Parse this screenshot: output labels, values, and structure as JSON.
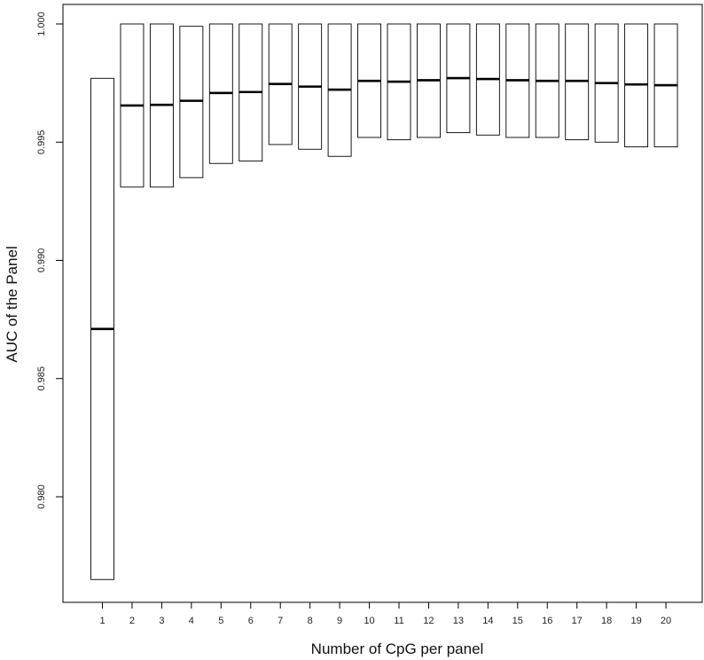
{
  "chart_data": {
    "type": "box",
    "xlabel": "Number of CpG per panel",
    "ylabel": "AUC of the Panel",
    "ylim": [
      0.9755,
      1.0005
    ],
    "y_ticks": [
      0.98,
      0.985,
      0.99,
      0.995,
      1.0
    ],
    "y_tick_labels": [
      "0.980",
      "0.985",
      "0.990",
      "0.995",
      "1.000"
    ],
    "categories": [
      "1",
      "2",
      "3",
      "4",
      "5",
      "6",
      "7",
      "8",
      "9",
      "10",
      "11",
      "12",
      "13",
      "14",
      "15",
      "16",
      "17",
      "18",
      "19",
      "20"
    ],
    "boxes": [
      {
        "low": 0.9765,
        "median": 0.9871,
        "high": 0.9977
      },
      {
        "low": 0.9931,
        "median": 0.99655,
        "high": 1.0
      },
      {
        "low": 0.9931,
        "median": 0.99658,
        "high": 1.0
      },
      {
        "low": 0.9935,
        "median": 0.99675,
        "high": 0.9999
      },
      {
        "low": 0.9941,
        "median": 0.99708,
        "high": 1.0
      },
      {
        "low": 0.9942,
        "median": 0.99712,
        "high": 1.0
      },
      {
        "low": 0.9949,
        "median": 0.99746,
        "high": 1.0
      },
      {
        "low": 0.9947,
        "median": 0.99735,
        "high": 1.0
      },
      {
        "low": 0.9944,
        "median": 0.99722,
        "high": 1.0
      },
      {
        "low": 0.9952,
        "median": 0.99759,
        "high": 1.0
      },
      {
        "low": 0.9951,
        "median": 0.99756,
        "high": 1.0
      },
      {
        "low": 0.9952,
        "median": 0.99762,
        "high": 1.0
      },
      {
        "low": 0.9954,
        "median": 0.99771,
        "high": 1.0
      },
      {
        "low": 0.9953,
        "median": 0.99767,
        "high": 1.0
      },
      {
        "low": 0.9952,
        "median": 0.99762,
        "high": 1.0
      },
      {
        "low": 0.9952,
        "median": 0.99759,
        "high": 1.0
      },
      {
        "low": 0.9951,
        "median": 0.99759,
        "high": 1.0
      },
      {
        "low": 0.995,
        "median": 0.9975,
        "high": 1.0
      },
      {
        "low": 0.9948,
        "median": 0.99744,
        "high": 1.0
      },
      {
        "low": 0.9948,
        "median": 0.99741,
        "high": 1.0
      }
    ],
    "grid": false,
    "legend": "none"
  }
}
